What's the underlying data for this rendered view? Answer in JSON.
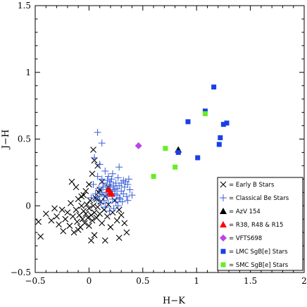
{
  "chart_data": {
    "type": "scatter",
    "title": "",
    "xlabel": "H−K",
    "ylabel": "J−H",
    "xlim": [
      -0.5,
      2.0
    ],
    "ylim": [
      -0.5,
      1.5
    ],
    "xticks": [
      -0.5,
      0,
      0.5,
      1,
      1.5,
      2
    ],
    "yticks": [
      -0.5,
      0,
      0.5,
      1,
      1.5
    ],
    "xtick_labels": [
      "−0.5",
      "0",
      "0.5",
      "1",
      "1.5",
      "2"
    ],
    "ytick_labels": [
      "−0.5",
      "0",
      "0.5",
      "1",
      "1.5"
    ],
    "grid": false,
    "legend_position": "bottom-right",
    "series": [
      {
        "name": "= Early B Stars",
        "marker": "x",
        "color": "#000000",
        "points": [
          [
            -0.45,
            -0.23
          ],
          [
            -0.47,
            -0.12
          ],
          [
            -0.4,
            -0.06
          ],
          [
            -0.35,
            -0.11
          ],
          [
            -0.32,
            -0.02
          ],
          [
            -0.3,
            -0.08
          ],
          [
            -0.28,
            -0.14
          ],
          [
            -0.25,
            -0.03
          ],
          [
            -0.24,
            -0.19
          ],
          [
            -0.22,
            -0.1
          ],
          [
            -0.2,
            -0.05
          ],
          [
            -0.18,
            -0.15
          ],
          [
            -0.17,
            0.02
          ],
          [
            -0.15,
            -0.08
          ],
          [
            -0.14,
            -0.2
          ],
          [
            -0.12,
            -0.03
          ],
          [
            -0.11,
            -0.12
          ],
          [
            -0.1,
            0.05
          ],
          [
            -0.09,
            -0.07
          ],
          [
            -0.08,
            -0.16
          ],
          [
            -0.07,
            0.0
          ],
          [
            -0.06,
            -0.1
          ],
          [
            -0.05,
            -0.04
          ],
          [
            -0.05,
            0.08
          ],
          [
            -0.04,
            -0.13
          ],
          [
            -0.03,
            -0.06
          ],
          [
            -0.02,
            0.01
          ],
          [
            -0.01,
            -0.09
          ],
          [
            0.0,
            -0.02
          ],
          [
            0.0,
            -0.15
          ],
          [
            0.01,
            0.04
          ],
          [
            0.02,
            -0.07
          ],
          [
            0.03,
            -0.11
          ],
          [
            0.04,
            0.0
          ],
          [
            0.05,
            -0.05
          ],
          [
            0.06,
            0.06
          ],
          [
            0.07,
            -0.09
          ],
          [
            0.08,
            -0.01
          ],
          [
            0.09,
            0.1
          ],
          [
            0.1,
            -0.06
          ],
          [
            0.11,
            0.03
          ],
          [
            0.12,
            -0.13
          ],
          [
            0.14,
            -0.03
          ],
          [
            0.15,
            0.07
          ],
          [
            0.17,
            -0.08
          ],
          [
            0.18,
            0.01
          ],
          [
            0.2,
            -0.16
          ],
          [
            0.22,
            -0.05
          ],
          [
            0.24,
            0.04
          ],
          [
            0.26,
            -0.11
          ],
          [
            0.28,
            -0.03
          ],
          [
            0.3,
            -0.07
          ],
          [
            0.33,
            -0.13
          ],
          [
            0.35,
            -0.2
          ],
          [
            0.05,
            -0.22
          ],
          [
            0.15,
            -0.26
          ],
          [
            -0.1,
            -0.18
          ],
          [
            0.02,
            -0.26
          ],
          [
            -0.16,
            0.18
          ],
          [
            -0.12,
            0.14
          ],
          [
            0.0,
            0.16
          ],
          [
            0.05,
            0.34
          ],
          [
            0.04,
            0.42
          ],
          [
            0.08,
            0.3
          ],
          [
            0.03,
            0.24
          ],
          [
            0.12,
            0.18
          ],
          [
            -0.07,
            0.07
          ],
          [
            0.1,
            0.12
          ],
          [
            -0.03,
            0.11
          ],
          [
            0.07,
            0.05
          ],
          [
            0.18,
            0.14
          ],
          [
            0.28,
            -0.24
          ]
        ]
      },
      {
        "name": "= Classical Be Stars",
        "marker": "plus",
        "color": "#3a5fd8",
        "points": [
          [
            0.08,
            0.55
          ],
          [
            0.12,
            0.47
          ],
          [
            0.05,
            0.36
          ],
          [
            0.1,
            0.31
          ],
          [
            0.15,
            0.26
          ],
          [
            0.18,
            0.22
          ],
          [
            0.22,
            0.24
          ],
          [
            0.28,
            0.29
          ],
          [
            0.32,
            0.19
          ],
          [
            0.25,
            0.17
          ],
          [
            0.2,
            0.14
          ],
          [
            0.16,
            0.12
          ],
          [
            0.12,
            0.1
          ],
          [
            0.1,
            0.07
          ],
          [
            0.14,
            0.04
          ],
          [
            0.18,
            0.02
          ],
          [
            0.22,
            0.05
          ],
          [
            0.26,
            0.08
          ],
          [
            0.3,
            0.11
          ],
          [
            0.33,
            0.14
          ],
          [
            0.36,
            0.16
          ],
          [
            0.38,
            0.12
          ],
          [
            0.35,
            0.07
          ],
          [
            0.31,
            0.03
          ],
          [
            0.27,
            0.0
          ],
          [
            0.23,
            -0.02
          ],
          [
            0.19,
            -0.04
          ],
          [
            0.15,
            -0.01
          ],
          [
            0.11,
            0.02
          ],
          [
            0.07,
            0.05
          ],
          [
            0.09,
            0.13
          ],
          [
            0.13,
            0.17
          ],
          [
            0.17,
            0.19
          ],
          [
            0.21,
            0.2
          ],
          [
            0.24,
            0.12
          ],
          [
            0.28,
            0.15
          ],
          [
            0.32,
            0.09
          ],
          [
            0.29,
            0.05
          ],
          [
            0.25,
            0.03
          ],
          [
            0.21,
            0.09
          ],
          [
            0.17,
            0.07
          ],
          [
            0.13,
            0.14
          ],
          [
            0.06,
            0.09
          ],
          [
            0.04,
            0.16
          ],
          [
            0.19,
            0.16
          ],
          [
            0.23,
            0.15
          ],
          [
            0.27,
            0.21
          ],
          [
            0.34,
            0.18
          ],
          [
            0.37,
            0.2
          ],
          [
            0.3,
            0.17
          ],
          [
            0.26,
            0.13
          ],
          [
            0.22,
            0.11
          ],
          [
            0.18,
            0.09
          ],
          [
            0.14,
            0.08
          ],
          [
            0.2,
            0.18
          ],
          [
            0.16,
            0.15
          ],
          [
            0.24,
            0.09
          ],
          [
            0.28,
            0.06
          ],
          [
            0.12,
            0.2
          ],
          [
            0.08,
            0.22
          ],
          [
            0.36,
            0.04
          ],
          [
            0.4,
            0.08
          ],
          [
            0.02,
            0.06
          ]
        ]
      },
      {
        "name": "= AzV 154",
        "marker": "triangle",
        "color": "#000000",
        "points": [
          [
            0.83,
            0.42
          ]
        ]
      },
      {
        "name": "= R38, R48 & R15",
        "marker": "triangle",
        "color": "#ff0000",
        "points": [
          [
            0.2,
            0.1
          ],
          [
            0.18,
            0.12
          ],
          [
            0.21,
            0.09
          ]
        ]
      },
      {
        "name": "= VFTS698",
        "marker": "diamond",
        "color": "#bb44ee",
        "points": [
          [
            0.46,
            0.45
          ]
        ]
      },
      {
        "name": "= LMC SgB[e] Stars",
        "marker": "square",
        "color": "#1a3fe8",
        "points": [
          [
            1.16,
            0.89
          ],
          [
            1.08,
            0.71
          ],
          [
            0.92,
            0.63
          ],
          [
            1.25,
            0.61
          ],
          [
            1.28,
            0.62
          ],
          [
            1.22,
            0.51
          ],
          [
            1.21,
            0.46
          ],
          [
            1.01,
            0.36
          ],
          [
            0.83,
            0.4
          ]
        ]
      },
      {
        "name": "= SMC SgB[e] Stars",
        "marker": "square",
        "color": "#66ee22",
        "points": [
          [
            1.08,
            0.69
          ],
          [
            0.71,
            0.43
          ],
          [
            0.8,
            0.29
          ],
          [
            0.6,
            0.22
          ]
        ]
      }
    ]
  }
}
